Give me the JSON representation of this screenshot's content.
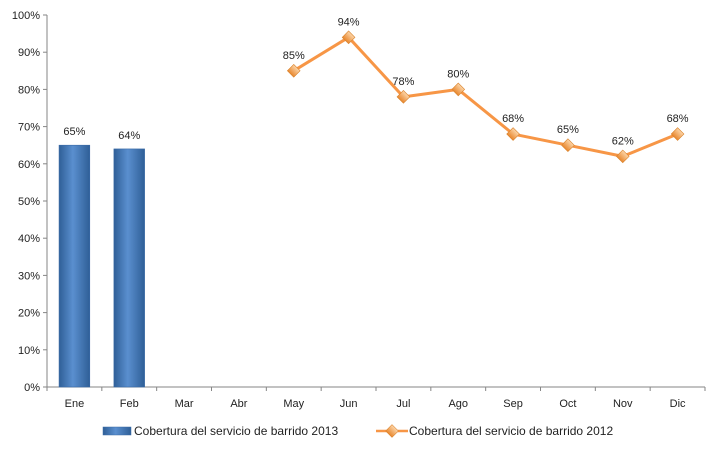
{
  "chart_data": {
    "type": "bar+line",
    "categories": [
      "Ene",
      "Feb",
      "Mar",
      "Abr",
      "May",
      "Jun",
      "Jul",
      "Ago",
      "Sep",
      "Oct",
      "Nov",
      "Dic"
    ],
    "ylim": [
      0,
      100
    ],
    "yticks": [
      0,
      10,
      20,
      30,
      40,
      50,
      60,
      70,
      80,
      90,
      100
    ],
    "ytick_format": "percent",
    "grid": false,
    "legend_position": "bottom",
    "series": [
      {
        "name": "Cobertura del servicio de barrido 2013",
        "type": "bar",
        "color": "#4f81bd",
        "values": [
          65,
          64,
          null,
          null,
          null,
          null,
          null,
          null,
          null,
          null,
          null,
          null
        ],
        "labels": [
          "65%",
          "64%",
          null,
          null,
          null,
          null,
          null,
          null,
          null,
          null,
          null,
          null
        ]
      },
      {
        "name": "Cobertura del servicio de barrido 2012",
        "type": "line",
        "color": "#f79646",
        "values": [
          null,
          null,
          null,
          null,
          85,
          94,
          78,
          80,
          68,
          65,
          62,
          68
        ],
        "labels": [
          null,
          null,
          null,
          null,
          "85%",
          "94%",
          "78%",
          "80%",
          "68%",
          "65%",
          "62%",
          "68%"
        ]
      }
    ]
  }
}
